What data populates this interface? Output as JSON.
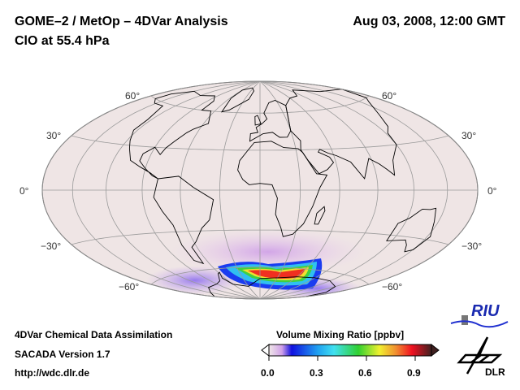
{
  "header": {
    "title": "GOME–2 / MetOp – 4DVar Analysis",
    "subtitle": "ClO at 55.4 hPa",
    "datetime": "Aug 03, 2008, 12:00 GMT"
  },
  "map": {
    "lat_labels_left": [
      "60°",
      "30°",
      "0°",
      "−30°",
      "−60°"
    ],
    "lat_labels_right": [
      "60°",
      "30°",
      "0°",
      "−30°",
      "−60°"
    ]
  },
  "footer": {
    "line1": "4DVar Chemical Data Assimilation",
    "line2": "SACADA Version 1.7",
    "line3": "http://wdc.dlr.de"
  },
  "colorbar": {
    "title": "Volume Mixing Ratio [ppbv]",
    "ticks": [
      "0.0",
      "0.3",
      "0.6",
      "0.9"
    ],
    "range": [
      0,
      1.0
    ]
  },
  "logos": {
    "riu": "RIU",
    "dlr": "DLR"
  },
  "colors": {
    "ocean": "#efe5e5",
    "land_line": "#000000",
    "grid": "#999999"
  }
}
